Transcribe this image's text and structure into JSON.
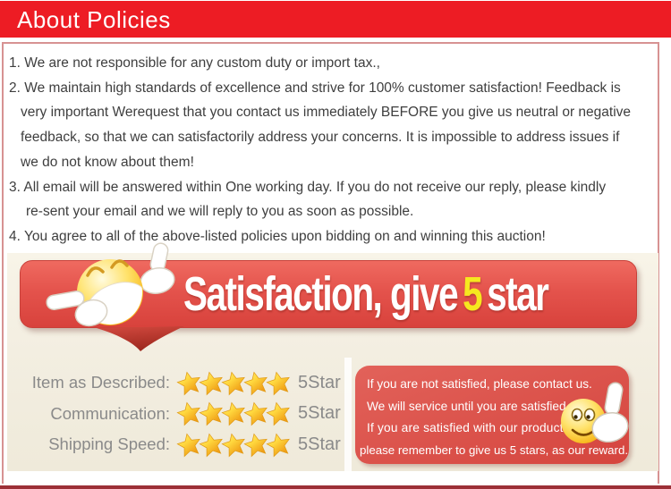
{
  "header": {
    "title": "About Policies"
  },
  "policies": {
    "lines": [
      {
        "text": "1. We are not responsible for any custom duty or import tax.,",
        "indent": 0
      },
      {
        "text": "2. We maintain high standards of excellence and strive for 100% customer satisfaction! Feedback is",
        "indent": 0
      },
      {
        "text": "very important Werequest that you contact us immediately BEFORE you give us neutral or negative",
        "indent": 1
      },
      {
        "text": "feedback, so that we can satisfactorily address your concerns. It is impossible to address issues if",
        "indent": 1
      },
      {
        "text": "we do not know about them!",
        "indent": 1
      },
      {
        "text": "3. All email will be answered within One working day. If you do not receive our reply, please kindly",
        "indent": 0
      },
      {
        "text": "re-sent your email and we will reply to you as soon as possible.",
        "indent": 2
      },
      {
        "text": "4. You agree to all of the above-listed policies upon bidding on and winning this auction!",
        "indent": 0
      }
    ]
  },
  "banner": {
    "text_before": "Satisfaction, give",
    "highlight": "5",
    "text_after": "star",
    "highlight_color": "#f6e81f"
  },
  "ratings": {
    "rows": [
      {
        "label": "Item as Described:",
        "stars": 5,
        "value": "5Star"
      },
      {
        "label": "Communication:",
        "stars": 5,
        "value": "5Star"
      },
      {
        "label": "Shipping Speed:",
        "stars": 5,
        "value": "5Star"
      }
    ]
  },
  "reward_note": {
    "lines": [
      "If you are not satisfied, please contact us.",
      "We will service until you are satisfied",
      "If you are satisfied with our products,",
      "please remember to give us 5 stars, as our reward."
    ]
  },
  "icons": {
    "banner_emoji": "laughing-face-two-thumbs-up",
    "note_emoji": "smiley-face-thumb-up",
    "star": "gold-star"
  },
  "colors": {
    "header_red": "#ed1c24",
    "ribbon_red": "#dd4f48",
    "note_red": "#d9504a",
    "cream": "#f4efe2",
    "border_pink": "#d79292",
    "bottom_rule": "#9c3037",
    "star_gold": "#f9c31a",
    "gray_text": "#8a8a8a",
    "policy_text": "#3e3e3e"
  }
}
